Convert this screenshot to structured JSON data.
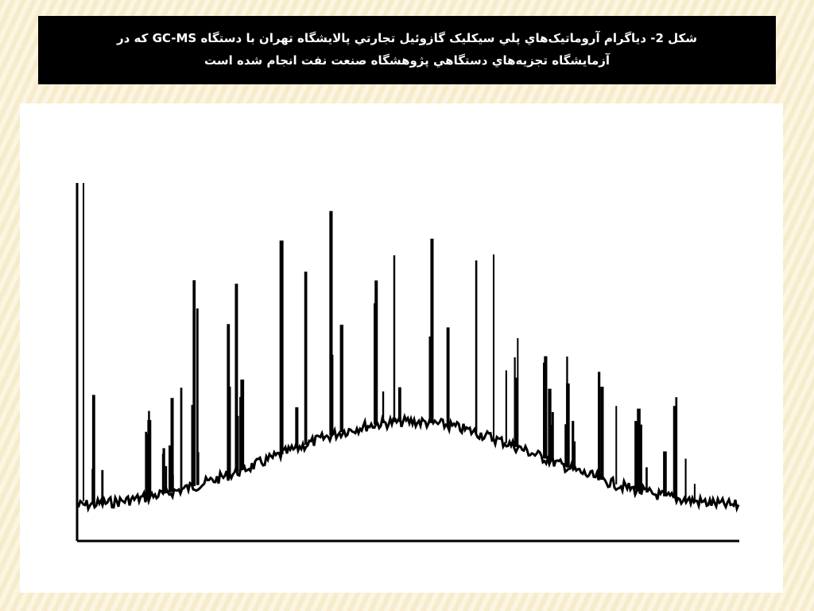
{
  "caption": {
    "lines": [
      "شکل 2- دياگرام آروماتيک‌هاي پلي سيکليک گازوئيل تجارتي پالايشگاه تهران با دستگاه GC-MS که در",
      "آزمايشگاه تجزيه‌هاي دستگاهي پژوهشگاه صنعت نفت انجام شده است"
    ]
  }
}
